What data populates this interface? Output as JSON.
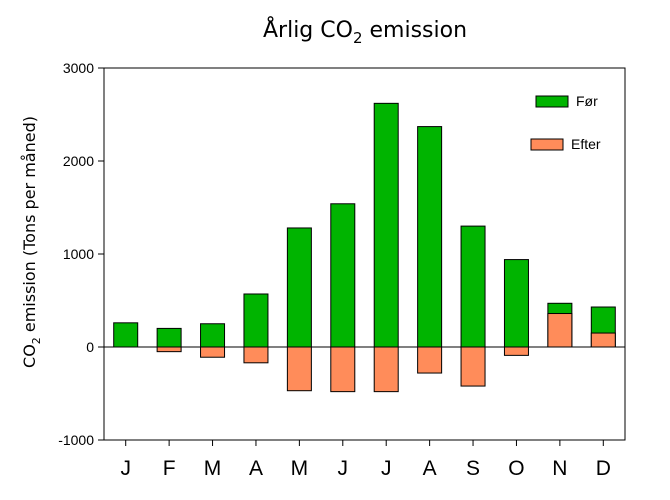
{
  "chart_data": {
    "type": "bar",
    "title": "Årlig CO",
    "title_sub": "2",
    "title_suffix": " emission",
    "ylabel": "CO",
    "ylabel_sub": "2",
    "ylabel_suffix": " emission (Tons per måned)",
    "xlabel": "",
    "categories": [
      "J",
      "F",
      "M",
      "A",
      "M",
      "J",
      "J",
      "A",
      "S",
      "O",
      "N",
      "D"
    ],
    "series": [
      {
        "name": "Før",
        "color": "#00b400",
        "values": [
          260,
          200,
          250,
          570,
          1280,
          1540,
          2620,
          2370,
          1300,
          940,
          470,
          430
        ]
      },
      {
        "name": "Efter",
        "color": "#ff8c5a",
        "values": [
          0,
          -50,
          -110,
          -170,
          -470,
          -480,
          -480,
          -280,
          -420,
          -90,
          360,
          150
        ]
      }
    ],
    "ylim": [
      -1000,
      3000
    ],
    "yticks": [
      -1000,
      0,
      1000,
      2000,
      3000
    ],
    "ytick_labels": [
      "-1000",
      "0",
      "1000",
      "2000",
      "3000"
    ],
    "grid": false,
    "legend_position": "top-right",
    "zero_line": true
  }
}
